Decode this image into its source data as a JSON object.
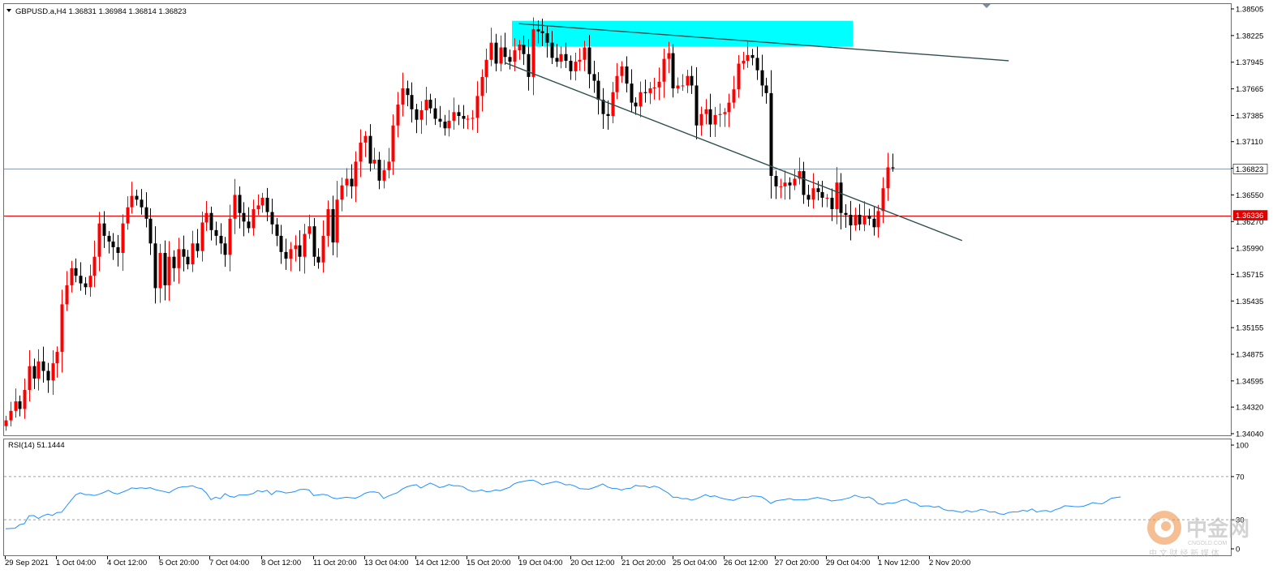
{
  "header": {
    "symbol_info": "GBPUSD.a,H4  1.36831 1.36984 1.36814 1.36823",
    "rsi_label": "RSI(14) 51.1444"
  },
  "watermark": {
    "brand": "中金网",
    "domain": "CNGOLD.COM",
    "tagline": "中 文 财 经 新 媒 体"
  },
  "colors": {
    "bull": "#ff0000",
    "bear": "#000000",
    "zone": "#00ffff",
    "trendline": "#2f4f4f",
    "support": "#e00000",
    "current": "#8a9bb0",
    "rsi": "#1e90ff",
    "rsi_level": "#a0a0a0"
  },
  "chart_data": [
    {
      "type": "candlestick",
      "title": "GBPUSD.a,H4",
      "ylim": [
        1.3404,
        1.38505
      ],
      "y_ticks": [
        "1.38505",
        "1.38225",
        "1.37945",
        "1.37665",
        "1.37385",
        "1.37110",
        "1.36830",
        "1.36550",
        "1.36270",
        "1.35990",
        "1.35715",
        "1.35435",
        "1.35155",
        "1.34875",
        "1.34595",
        "1.34320",
        "1.34040"
      ],
      "x_ticks": [
        "29 Sep 2021",
        "1 Oct 04:00",
        "4 Oct 12:00",
        "5 Oct 20:00",
        "7 Oct 04:00",
        "8 Oct 12:00",
        "11 Oct 20:00",
        "13 Oct 04:00",
        "14 Oct 12:00",
        "15 Oct 20:00",
        "19 Oct 04:00",
        "20 Oct 12:00",
        "21 Oct 20:00",
        "25 Oct 04:00",
        "26 Oct 12:00",
        "27 Oct 20:00",
        "29 Oct 04:00",
        "1 Nov 12:00",
        "2 Nov 20:00"
      ],
      "price_markers": [
        {
          "label": "1.36823",
          "value": 1.36823,
          "kind": "current"
        },
        {
          "label": "1.36336",
          "value": 1.36336,
          "kind": "support"
        }
      ],
      "resistance_zone": {
        "from": 1.3811,
        "to": 1.3838
      },
      "trendlines": [
        {
          "from": {
            "bar": 110,
            "price": 1.3835
          },
          "to": {
            "bar": 215,
            "price": 1.3796
          }
        },
        {
          "from": {
            "bar": 107,
            "price": 1.3794
          },
          "to": {
            "bar": 205,
            "price": 1.3607
          }
        }
      ],
      "closes": [
        1.3418,
        1.3428,
        1.3438,
        1.343,
        1.345,
        1.3475,
        1.3462,
        1.348,
        1.347,
        1.346,
        1.3478,
        1.349,
        1.354,
        1.356,
        1.3578,
        1.357,
        1.3562,
        1.3558,
        1.357,
        1.359,
        1.3625,
        1.3612,
        1.3606,
        1.36,
        1.3594,
        1.3625,
        1.3642,
        1.3654,
        1.365,
        1.3642,
        1.363,
        1.3604,
        1.3557,
        1.3594,
        1.356,
        1.359,
        1.3578,
        1.3598,
        1.359,
        1.3582,
        1.3604,
        1.3596,
        1.3626,
        1.3636,
        1.3618,
        1.3612,
        1.3604,
        1.3592,
        1.363,
        1.3655,
        1.3636,
        1.3627,
        1.362,
        1.364,
        1.3644,
        1.3652,
        1.3637,
        1.3624,
        1.3612,
        1.3595,
        1.3588,
        1.3598,
        1.3602,
        1.359,
        1.3614,
        1.3622,
        1.359,
        1.3584,
        1.3612,
        1.364,
        1.3605,
        1.365,
        1.3665,
        1.3672,
        1.3664,
        1.369,
        1.371,
        1.3717,
        1.3688,
        1.3692,
        1.367,
        1.3681,
        1.369,
        1.3728,
        1.375,
        1.3767,
        1.376,
        1.3745,
        1.3734,
        1.3744,
        1.3755,
        1.3746,
        1.3735,
        1.3732,
        1.3725,
        1.3733,
        1.3742,
        1.3738,
        1.3735,
        1.3735,
        1.3736,
        1.3759,
        1.3779,
        1.3797,
        1.3815,
        1.3793,
        1.381,
        1.38,
        1.3795,
        1.3807,
        1.3813,
        1.3803,
        1.3779,
        1.3829,
        1.3827,
        1.3825,
        1.3815,
        1.3799,
        1.3795,
        1.3803,
        1.3796,
        1.3785,
        1.3795,
        1.3797,
        1.381,
        1.3782,
        1.3775,
        1.3755,
        1.374,
        1.3738,
        1.3763,
        1.378,
        1.379,
        1.3772,
        1.3752,
        1.3748,
        1.3763,
        1.3762,
        1.3767,
        1.3768,
        1.3774,
        1.3798,
        1.3804,
        1.3767,
        1.377,
        1.377,
        1.378,
        1.377,
        1.3728,
        1.374,
        1.3745,
        1.3729,
        1.3739,
        1.374,
        1.3742,
        1.3752,
        1.3766,
        1.3793,
        1.3796,
        1.3802,
        1.3799,
        1.3786,
        1.377,
        1.3762,
        1.3675,
        1.3664,
        1.3664,
        1.3668,
        1.3665,
        1.3672,
        1.368,
        1.3655,
        1.365,
        1.3662,
        1.3658,
        1.3652,
        1.3652,
        1.364,
        1.3668,
        1.3636,
        1.3634,
        1.3623,
        1.3634,
        1.3624,
        1.3633,
        1.363,
        1.3621,
        1.3638,
        1.3662,
        1.3684,
        1.3683
      ],
      "last_bar_high": 1.36984,
      "last_bar_low": 1.36814
    },
    {
      "type": "line",
      "title": "RSI(14) 51.1444",
      "ylim": [
        0,
        100
      ],
      "y_ticks": [
        "100",
        "70",
        "30",
        "0"
      ],
      "levels": [
        70,
        30
      ],
      "last_value": 51.1444,
      "values": [
        21.6,
        21.9,
        22.1,
        25.4,
        26.3,
        33.7,
        33.9,
        31.1,
        33.6,
        35.2,
        34.0,
        36.7,
        36.9,
        42.5,
        48.0,
        53.1,
        55.0,
        53.3,
        53.3,
        52.5,
        53.6,
        55.3,
        57.3,
        54.9,
        53.8,
        55.6,
        57.2,
        59.5,
        59.0,
        59.6,
        59.0,
        59.6,
        58.0,
        57.0,
        56.2,
        55.0,
        57.7,
        59.7,
        60.6,
        60.7,
        61.6,
        59.6,
        58.9,
        54.8,
        48.6,
        50.9,
        49.5,
        54.2,
        51.6,
        50.9,
        52.9,
        52.9,
        53.2,
        54.2,
        57.0,
        55.9,
        57.3,
        53.2,
        56.6,
        56.1,
        54.8,
        55.3,
        56.1,
        58.0,
        58.3,
        57.6,
        52.4,
        53.0,
        53.6,
        52.8,
        50.4,
        49.5,
        50.2,
        50.8,
        50.4,
        50.0,
        51.8,
        54.5,
        55.7,
        55.8,
        55.0,
        49.8,
        51.8,
        53.6,
        55.1,
        58.5,
        60.5,
        61.7,
        62.5,
        59.4,
        61.8,
        64.0,
        62.2,
        59.8,
        60.8,
        62.6,
        61.5,
        61.4,
        60.7,
        57.8,
        56.3,
        56.5,
        57.6,
        56.0,
        56.3,
        57.6,
        56.9,
        58.6,
        60.0,
        63.4,
        64.7,
        65.6,
        66.3,
        66.8,
        64.9,
        62.3,
        63.5,
        64.5,
        65.5,
        64.2,
        62.3,
        62.6,
        61.2,
        58.9,
        58.6,
        58.3,
        59.7,
        61.3,
        63.2,
        60.4,
        59.0,
        58.8,
        57.5,
        58.9,
        59.2,
        61.9,
        61.1,
        61.3,
        59.7,
        61.2,
        59.9,
        57.3,
        54.8,
        50.8,
        50.8,
        49.4,
        49.6,
        48.1,
        49.3,
        51.2,
        53.2,
        51.4,
        52.1,
        50.5,
        49.3,
        48.6,
        47.9,
        49.6,
        51.0,
        50.5,
        52.1,
        51.8,
        51.2,
        48.6,
        45.1,
        47.4,
        48.1,
        48.7,
        49.6,
        48.4,
        48.4,
        48.5,
        48.8,
        49.8,
        50.7,
        49.6,
        48.9,
        47.4,
        47.9,
        48.4,
        49.4,
        50.5,
        52.7,
        51.3,
        50.3,
        51.1,
        49.0,
        44.9,
        44.1,
        45.5,
        45.2,
        46.0,
        48.0,
        48.9,
        46.2,
        45.4,
        42.5,
        42.8,
        42.8,
        41.6,
        42.3,
        39.6,
        38.4,
        38.5,
        37.6,
        36.8,
        38.6,
        37.2,
        37.8,
        39.5,
        38.9,
        37.0,
        37.4,
        35.4,
        35.0,
        36.8,
        37.2,
        37.3,
        38.7,
        38.0,
        40.0,
        37.1,
        38.2,
        38.5,
        37.2,
        39.3,
        40.6,
        42.9,
        42.6,
        42.2,
        42.0,
        42.5,
        44.0,
        45.9,
        45.1,
        44.7,
        47.2,
        49.9,
        50.6,
        51.1
      ]
    }
  ]
}
